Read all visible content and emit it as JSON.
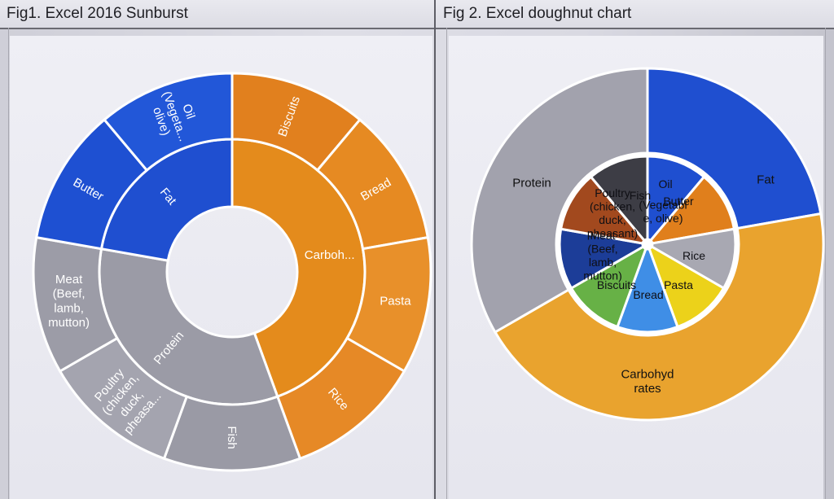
{
  "sheet": {
    "fig1_title": "Fig1. Excel 2016 Sunburst",
    "fig2_title": "Fig 2. Excel doughnut chart"
  },
  "chart_data": [
    {
      "type": "sunburst",
      "title": "Fig1. Excel 2016 Sunburst",
      "rings": {
        "inner": [
          {
            "name": "Carbohydrates",
            "label": "Carboh...",
            "value": 4,
            "color": "#e48b1c"
          },
          {
            "name": "Protein",
            "label": "Protein",
            "value": 3,
            "color": "#9b9ba6"
          },
          {
            "name": "Fat",
            "label": "Fat",
            "value": 2,
            "color": "#1f4fd0"
          }
        ],
        "outer": [
          {
            "name": "Biscuits",
            "label": "Biscuits",
            "parent": "Carbohydrates",
            "value": 1
          },
          {
            "name": "Bread",
            "label": "Bread",
            "parent": "Carbohydrates",
            "value": 1
          },
          {
            "name": "Pasta",
            "label": "Pasta",
            "parent": "Carbohydrates",
            "value": 1
          },
          {
            "name": "Rice",
            "label": "Rice",
            "parent": "Carbohydrates",
            "value": 1
          },
          {
            "name": "Fish",
            "label": "Fish",
            "parent": "Protein",
            "value": 1
          },
          {
            "name": "Poultry",
            "label": "Poultry (chicken, duck, pheasa...",
            "parent": "Protein",
            "value": 1
          },
          {
            "name": "Meat",
            "label": "Meat (Beef, lamb, mutton)",
            "parent": "Protein",
            "value": 1
          },
          {
            "name": "Butter",
            "label": "Butter",
            "parent": "Fat",
            "value": 1
          },
          {
            "name": "Oil",
            "label": "Oil (Vegeta... olive)",
            "parent": "Fat",
            "value": 1
          }
        ]
      }
    },
    {
      "type": "doughnut",
      "title": "Fig 2. Excel doughnut chart",
      "outer_series": [
        {
          "name": "Fat",
          "label": "Fat",
          "value": 2,
          "color": "#1f4fd0"
        },
        {
          "name": "Carbohydrates",
          "label": "Carbohyd rates",
          "value": 4,
          "color": "#e9a32e"
        },
        {
          "name": "Protein",
          "label": "Protein",
          "value": 3,
          "color": "#a2a2ad"
        }
      ],
      "inner_series": [
        {
          "name": "Oil",
          "label": "Oil",
          "value": 1,
          "color": "#1f4fd0"
        },
        {
          "name": "Butter",
          "label": "Butter",
          "value": 1,
          "color": "#e07f1c"
        },
        {
          "name": "Rice",
          "label": "Rice",
          "value": 1,
          "color": "#a8a8b2"
        },
        {
          "name": "Pasta",
          "label": "Pasta",
          "value": 1,
          "color": "#ecd21a"
        },
        {
          "name": "Bread",
          "label": "Bread",
          "value": 1,
          "color": "#3f8ee6"
        },
        {
          "name": "Biscuits",
          "label": "Biscuits",
          "value": 1,
          "color": "#67b146"
        },
        {
          "name": "Meat",
          "label": "Meat (Beef, lamb, mutton)",
          "value": 1,
          "color": "#1c3d98"
        },
        {
          "name": "Poultry",
          "label": "Poultry (chicken, duck, pheasant)",
          "value": 1,
          "color": "#a2491e"
        },
        {
          "name": "Fish",
          "label": "Fish",
          "value": 1,
          "color": "#3d3d45"
        }
      ],
      "overlap_label": "(Vegetabl e, olive)"
    }
  ]
}
